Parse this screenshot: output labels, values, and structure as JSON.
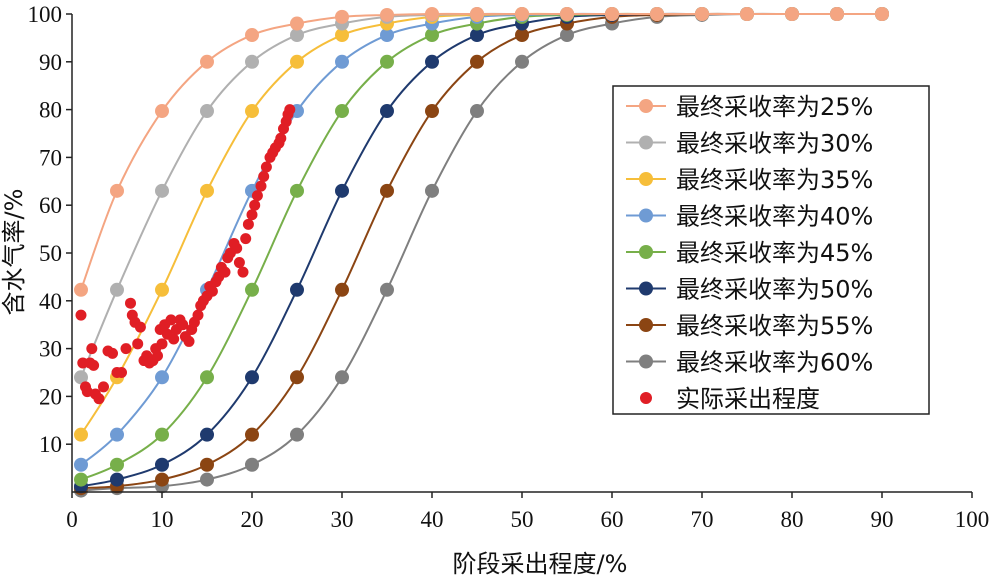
{
  "chart_data": {
    "type": "scatter",
    "xlabel": "阶段采出程度/%",
    "ylabel": "含水气率/%",
    "xlim": [
      0,
      100
    ],
    "ylim": [
      0,
      100
    ],
    "x_ticks": [
      "0",
      "10",
      "20",
      "30",
      "40",
      "50",
      "60",
      "70",
      "80",
      "90",
      "100"
    ],
    "y_ticks": [
      "10",
      "20",
      "30",
      "40",
      "50",
      "60",
      "70",
      "80",
      "90",
      "100"
    ],
    "grid": false,
    "legend_position": "right",
    "x": [
      1,
      5,
      10,
      15,
      20,
      25,
      30,
      35,
      40,
      45,
      50,
      55,
      60,
      65,
      70,
      75,
      80,
      85,
      90
    ],
    "series": [
      {
        "name": "最终采收率为25%",
        "color": "#F4A582",
        "values": [
          42.3,
          63,
          79.7,
          90,
          95.6,
          98,
          99.4,
          99.8,
          100,
          100,
          100,
          100,
          100,
          100,
          100,
          100,
          100,
          100,
          100
        ]
      },
      {
        "name": "最终采收率为30%",
        "color": "#B0B0B0",
        "values": [
          24,
          42.3,
          63,
          79.7,
          90,
          95.6,
          98,
          99.4,
          99.8,
          100,
          100,
          100,
          100,
          100,
          100,
          100,
          100,
          100,
          100
        ]
      },
      {
        "name": "最终采收率为35%",
        "color": "#F6BE3A",
        "values": [
          12,
          24,
          42.3,
          63,
          79.7,
          90,
          95.6,
          98,
          99.4,
          99.8,
          100,
          100,
          100,
          100,
          100,
          100,
          100,
          100,
          100
        ]
      },
      {
        "name": "最终采收率为40%",
        "color": "#6F9BD4",
        "values": [
          5.7,
          12,
          24,
          42.3,
          63,
          79.7,
          90,
          95.6,
          98,
          99.4,
          99.8,
          100,
          100,
          100,
          100,
          100,
          100,
          100,
          100
        ]
      },
      {
        "name": "最终采收率为45%",
        "color": "#77AF4A",
        "values": [
          2.6,
          5.7,
          12,
          24,
          42.3,
          63,
          79.7,
          90,
          95.6,
          98,
          99.4,
          99.8,
          100,
          100,
          100,
          100,
          100,
          100,
          100
        ]
      },
      {
        "name": "最终采收率为50%",
        "color": "#1F3A6E",
        "values": [
          1.2,
          2.6,
          5.7,
          12,
          24,
          42.3,
          63,
          79.7,
          90,
          95.6,
          98,
          99.4,
          99.8,
          100,
          100,
          100,
          100,
          100,
          100
        ]
      },
      {
        "name": "最终采收率为55%",
        "color": "#8B4513",
        "values": [
          0.8,
          1.2,
          2.6,
          5.7,
          12,
          24,
          42.3,
          63,
          79.7,
          90,
          95.6,
          98,
          99.4,
          99.8,
          100,
          100,
          100,
          100,
          100
        ]
      },
      {
        "name": "最终采收率为60%",
        "color": "#7F7F7F",
        "values": [
          0.3,
          0.8,
          1.2,
          2.6,
          5.7,
          12,
          24,
          42.3,
          63,
          79.7,
          90,
          95.6,
          98,
          99.4,
          99.8,
          100,
          100,
          100,
          100
        ]
      }
    ],
    "actual": {
      "name": "实际采出程度",
      "color": "#E01E25",
      "points": [
        [
          1,
          37
        ],
        [
          1.2,
          27
        ],
        [
          1.5,
          22
        ],
        [
          1.7,
          21
        ],
        [
          2,
          27
        ],
        [
          2.2,
          30
        ],
        [
          2.4,
          26.5
        ],
        [
          2.6,
          20.5
        ],
        [
          3,
          19.5
        ],
        [
          3.5,
          22
        ],
        [
          4,
          29.5
        ],
        [
          4.5,
          29
        ],
        [
          5,
          25
        ],
        [
          5.5,
          25
        ],
        [
          6,
          30
        ],
        [
          6.5,
          39.5
        ],
        [
          6.7,
          37
        ],
        [
          7,
          35.5
        ],
        [
          7.3,
          31
        ],
        [
          7.6,
          34.5
        ],
        [
          8,
          27.5
        ],
        [
          8.3,
          28.5
        ],
        [
          8.6,
          27
        ],
        [
          9,
          27.5
        ],
        [
          9.3,
          30
        ],
        [
          9.5,
          28.5
        ],
        [
          9.8,
          34
        ],
        [
          10,
          31
        ],
        [
          10.3,
          35
        ],
        [
          10.6,
          33
        ],
        [
          11,
          36
        ],
        [
          11.3,
          32
        ],
        [
          11.6,
          34
        ],
        [
          12,
          36
        ],
        [
          12.3,
          35
        ],
        [
          12.6,
          32.5
        ],
        [
          13,
          31.5
        ],
        [
          13.3,
          34
        ],
        [
          13.6,
          35.5
        ],
        [
          14,
          37
        ],
        [
          14.3,
          39
        ],
        [
          14.6,
          40
        ],
        [
          15,
          41
        ],
        [
          15.3,
          43
        ],
        [
          15.6,
          42
        ],
        [
          16,
          44
        ],
        [
          16.3,
          45
        ],
        [
          16.6,
          47
        ],
        [
          17,
          46
        ],
        [
          17.3,
          49
        ],
        [
          17.6,
          50
        ],
        [
          18,
          52
        ],
        [
          18.3,
          51
        ],
        [
          18.6,
          48
        ],
        [
          19,
          46
        ],
        [
          19.3,
          53
        ],
        [
          19.6,
          56
        ],
        [
          20,
          58
        ],
        [
          20.3,
          60
        ],
        [
          20.6,
          62
        ],
        [
          21,
          64
        ],
        [
          21.3,
          66
        ],
        [
          21.6,
          68
        ],
        [
          22,
          70
        ],
        [
          22.3,
          71
        ],
        [
          22.6,
          72
        ],
        [
          23,
          73
        ],
        [
          23.2,
          74
        ],
        [
          23.5,
          76
        ],
        [
          23.8,
          77.5
        ],
        [
          24,
          79
        ],
        [
          24.2,
          80
        ]
      ]
    }
  }
}
